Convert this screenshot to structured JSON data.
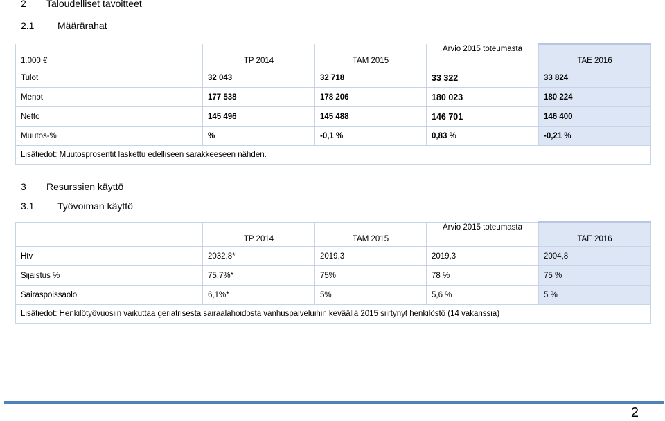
{
  "section2": {
    "num": "2",
    "title": "Taloudelliset tavoitteet"
  },
  "section21": {
    "num": "2.1",
    "title": "Määrärahat"
  },
  "table1": {
    "unit": "1.000 €",
    "headers": [
      "TP 2014",
      "TAM 2015",
      "Arvio 2015 toteumasta",
      "TAE 2016"
    ],
    "rows": [
      {
        "label": "Tulot",
        "values": [
          "32 043",
          "32 718",
          "33 322",
          "33 824"
        ]
      },
      {
        "label": "Menot",
        "values": [
          "177 538",
          "178 206",
          "180 023",
          "180 224"
        ]
      },
      {
        "label": "Netto",
        "values": [
          "145 496",
          "145 488",
          "146 701",
          "146 400"
        ]
      },
      {
        "label": "Muutos-%",
        "values": [
          "%",
          "-0,1 %",
          "0,83 %",
          "-0,21 %"
        ]
      }
    ],
    "note": "Lisätiedot: Muutosprosentit laskettu edelliseen sarakkeeseen nähden."
  },
  "section3": {
    "num": "3",
    "title": "Resurssien käyttö"
  },
  "section31": {
    "num": "3.1",
    "title": "Työvoiman käyttö"
  },
  "table2": {
    "headers": [
      "TP 2014",
      "TAM 2015",
      "Arvio 2015 toteumasta",
      "TAE 2016"
    ],
    "rows": [
      {
        "label": "Htv",
        "values": [
          "2032,8*",
          "2019,3",
          "2019,3",
          "2004,8"
        ]
      },
      {
        "label": "Sijaistus %",
        "values": [
          "75,7%*",
          "75%",
          "78 %",
          "75 %"
        ]
      },
      {
        "label": "Sairaspoissaolo",
        "values": [
          "6,1%*",
          "5%",
          "5,6 %",
          "5 %"
        ]
      }
    ],
    "note": "Lisätiedot: Henkilötyövuosiin vaikuttaa geriatrisesta sairaalahoidosta vanhuspalveluihin keväällä 2015 siirtynyt henkilöstö (14 vakanssia)"
  },
  "page_number": "2",
  "colors": {
    "border": "#c7d3e6",
    "tae_fill": "#dce6f4",
    "bottom_bar": "#4f81bd"
  }
}
